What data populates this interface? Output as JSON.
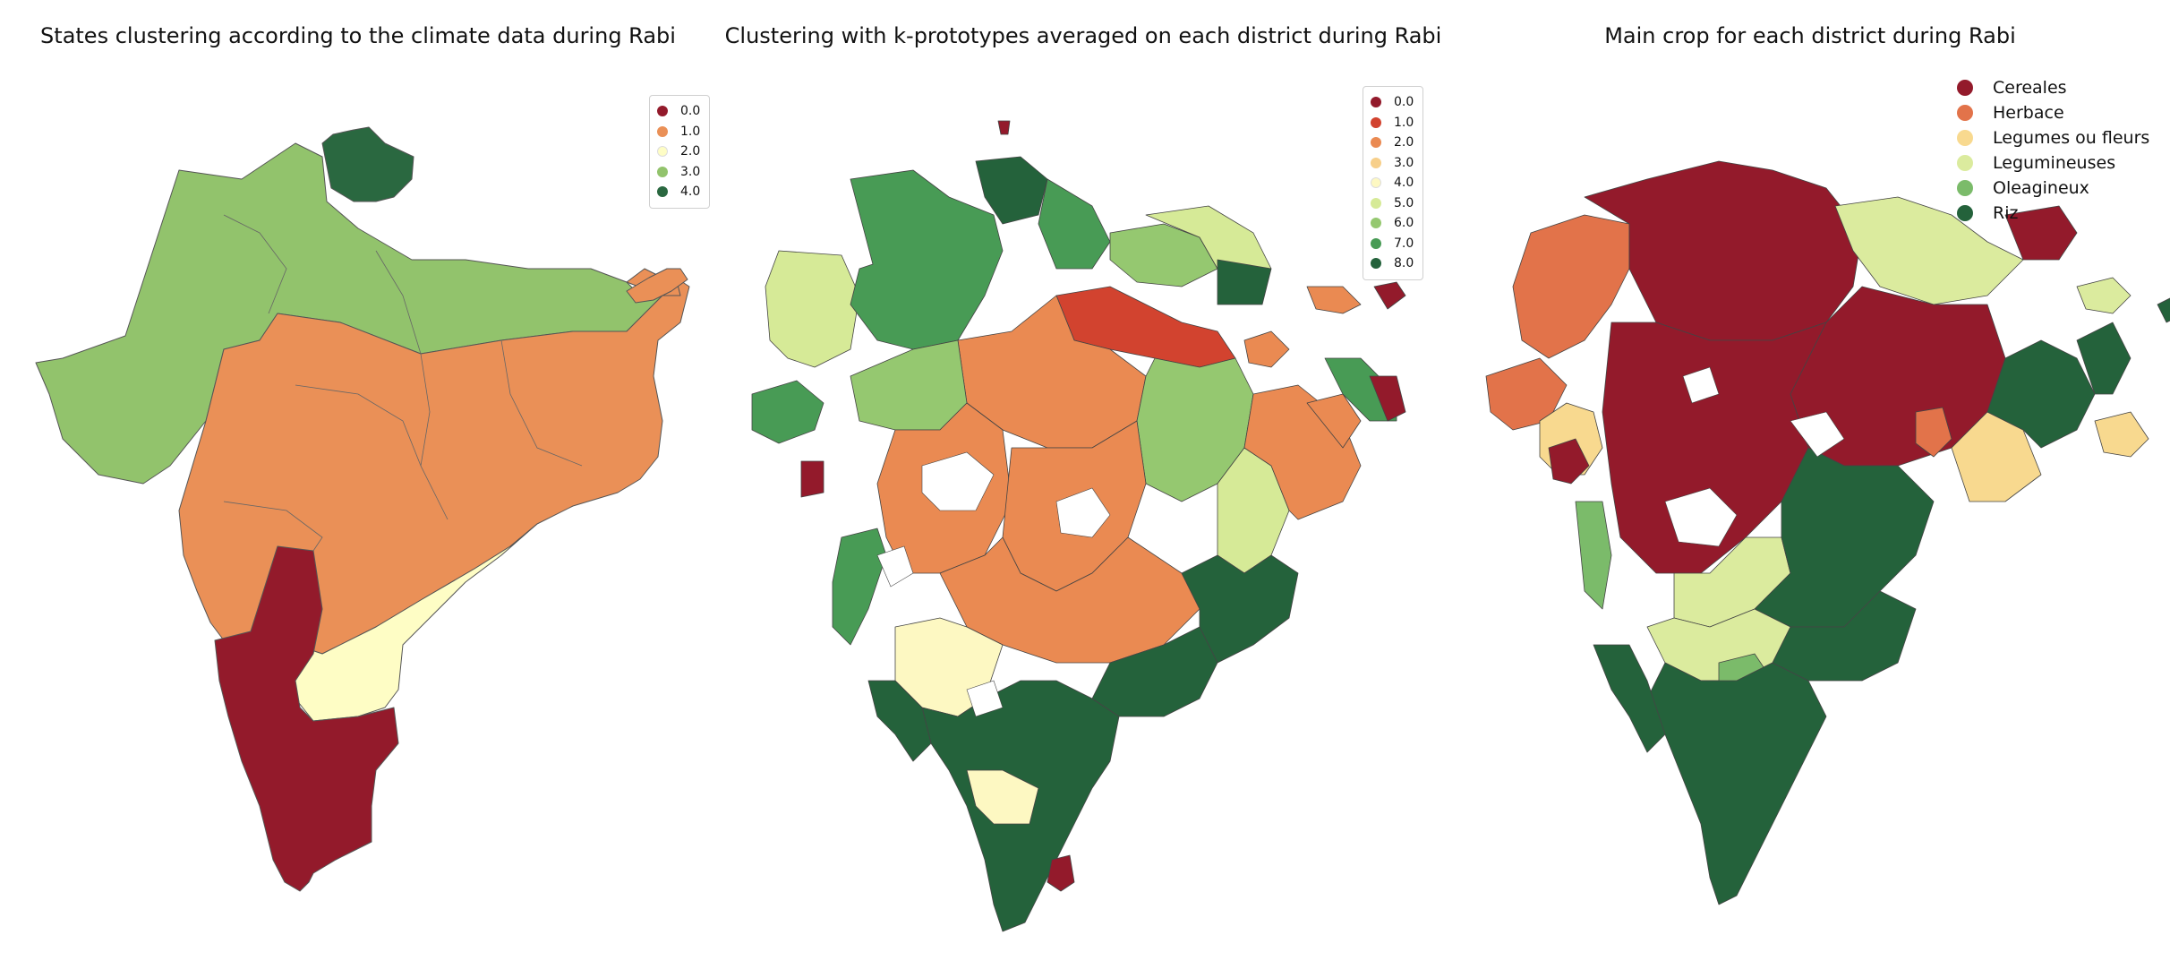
{
  "panels": [
    {
      "id": "states",
      "title": "States clustering according to the climate data during Rabi",
      "legend": [
        {
          "label": "0.0",
          "color": "#931a2b"
        },
        {
          "label": "1.0",
          "color": "#ea9057"
        },
        {
          "label": "2.0",
          "color": "#fefdc5"
        },
        {
          "label": "3.0",
          "color": "#92c36c"
        },
        {
          "label": "4.0",
          "color": "#2a6840"
        }
      ]
    },
    {
      "id": "kproto",
      "title": "Clustering with k-prototypes averaged on each district during Rabi",
      "legend": [
        {
          "label": "0.0",
          "color": "#931a2b"
        },
        {
          "label": "1.0",
          "color": "#d2432f"
        },
        {
          "label": "2.0",
          "color": "#ea8a52"
        },
        {
          "label": "3.0",
          "color": "#f7cf8a"
        },
        {
          "label": "4.0",
          "color": "#fdf8c2"
        },
        {
          "label": "5.0",
          "color": "#d6ea97"
        },
        {
          "label": "6.0",
          "color": "#95c870"
        },
        {
          "label": "7.0",
          "color": "#489b55"
        },
        {
          "label": "8.0",
          "color": "#24623b"
        }
      ]
    },
    {
      "id": "crop",
      "title": "Main crop for each district during Rabi",
      "legend": [
        {
          "label": "Cereales",
          "color": "#931a2b"
        },
        {
          "label": "Herbace",
          "color": "#e2734a"
        },
        {
          "label": "Legumes ou fleurs",
          "color": "#f8d98f"
        },
        {
          "label": "Legumineuses",
          "color": "#dbeb9e"
        },
        {
          "label": "Oleagineux",
          "color": "#7bbb6a"
        },
        {
          "label": "Riz",
          "color": "#24623b"
        }
      ]
    }
  ]
}
